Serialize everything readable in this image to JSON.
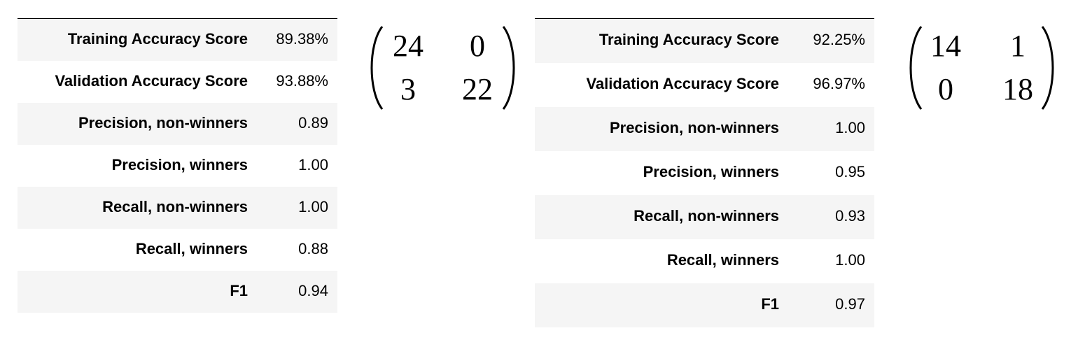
{
  "left": {
    "rows": [
      {
        "label": "Training Accuracy Score",
        "value": "89.38%"
      },
      {
        "label": "Validation Accuracy Score",
        "value": "93.88%"
      },
      {
        "label": "Precision, non-winners",
        "value": "0.89"
      },
      {
        "label": "Precision, winners",
        "value": "1.00"
      },
      {
        "label": "Recall, non-winners",
        "value": "1.00"
      },
      {
        "label": "Recall, winners",
        "value": "0.88"
      },
      {
        "label": "F1",
        "value": "0.94"
      }
    ],
    "matrix": [
      [
        "24",
        "0"
      ],
      [
        "3",
        "22"
      ]
    ]
  },
  "right": {
    "rows": [
      {
        "label": "Training Accuracy Score",
        "value": "92.25%"
      },
      {
        "label": "Validation Accuracy Score",
        "value": "96.97%"
      },
      {
        "label": "Precision, non-winners",
        "value": "1.00"
      },
      {
        "label": "Precision, winners",
        "value": "0.95"
      },
      {
        "label": "Recall, non-winners",
        "value": "0.93"
      },
      {
        "label": "Recall, winners",
        "value": "1.00"
      },
      {
        "label": "F1",
        "value": "0.97"
      }
    ],
    "matrix": [
      [
        "14",
        "1"
      ],
      [
        "0",
        "18"
      ]
    ]
  }
}
